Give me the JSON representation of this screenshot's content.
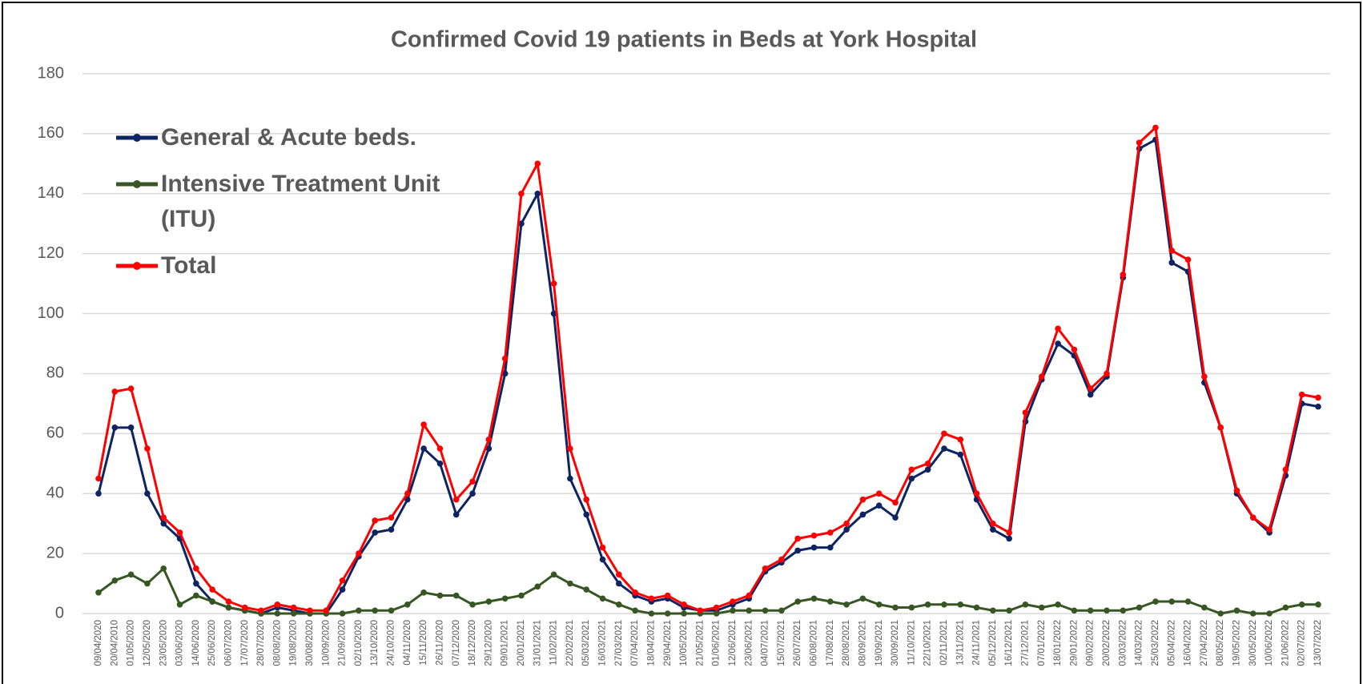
{
  "chart_data": {
    "type": "line",
    "title": "Confirmed Covid 19 patients in Beds at York Hospital",
    "categories": [
      "09/04/2020",
      "20/04/2010",
      "01/05/2020",
      "12/05/2020",
      "23/05/2020",
      "03/06/2020",
      "14/06/2020",
      "25/06/2020",
      "06/07/2020",
      "17/07/2020",
      "28/07/2020",
      "08/08/2020",
      "19/08/2020",
      "30/08/2020",
      "10/09/2020",
      "21/09/2020",
      "02/10/2020",
      "13/10/2020",
      "24/10/2020",
      "04/11/2020",
      "15/11/2020",
      "26/11/2020",
      "07/12/2020",
      "18/12/2020",
      "29/12/2020",
      "09/01/2021",
      "20/01/2021",
      "31/01/2021",
      "11/02/2021",
      "22/02/2021",
      "05/03/2021",
      "16/03/2021",
      "27/03/2021",
      "07/04/2021",
      "18/04/2021",
      "29/04/2021",
      "10/05/2021",
      "21/05/2021",
      "01/06/2021",
      "12/06/2021",
      "23/06/2021",
      "04/07/2021",
      "15/07/2021",
      "26/07/2021",
      "06/08/2021",
      "17/08/2021",
      "28/08/2021",
      "08/09/2021",
      "19/09/2021",
      "30/09/2021",
      "11/10/2021",
      "22/10/2021",
      "02/11/2021",
      "13/11/2021",
      "24/11/2021",
      "05/12/2021",
      "16/12/2021",
      "27/12/2021",
      "07/01/2022",
      "18/01/2022",
      "29/01/2022",
      "09/02/2022",
      "20/02/2022",
      "03/03/2022",
      "14/03/2022",
      "25/03/2022",
      "05/04/2022",
      "16/04/2022",
      "27/04/2022",
      "08/05/2022",
      "19/05/2022",
      "30/05/2022",
      "10/06/2022",
      "21/06/2022",
      "02/07/2022",
      "13/07/2022"
    ],
    "series": [
      {
        "name": "General & Acute beds.",
        "color": "#0d2463",
        "values": [
          40,
          62,
          62,
          40,
          30,
          25,
          10,
          4,
          2,
          1,
          0,
          2,
          1,
          0,
          0,
          8,
          19,
          27,
          28,
          38,
          55,
          50,
          33,
          40,
          55,
          80,
          130,
          140,
          100,
          45,
          33,
          18,
          10,
          6,
          4,
          5,
          2,
          1,
          1,
          3,
          5,
          14,
          17,
          21,
          22,
          22,
          28,
          33,
          36,
          32,
          45,
          48,
          55,
          53,
          38,
          28,
          25,
          64,
          78,
          90,
          86,
          73,
          79,
          112,
          155,
          158,
          117,
          114,
          77,
          62,
          40,
          32,
          27,
          46,
          70,
          69
        ]
      },
      {
        "name": "Intensive Treatment Unit (ITU)",
        "color": "#375623",
        "values": [
          7,
          11,
          13,
          10,
          15,
          3,
          6,
          4,
          2,
          1,
          0,
          0,
          0,
          0,
          0,
          0,
          1,
          1,
          1,
          3,
          7,
          6,
          6,
          3,
          4,
          5,
          6,
          9,
          13,
          10,
          8,
          5,
          3,
          1,
          0,
          0,
          0,
          0,
          0,
          1,
          1,
          1,
          1,
          4,
          5,
          4,
          3,
          5,
          3,
          2,
          2,
          3,
          3,
          3,
          2,
          1,
          1,
          3,
          2,
          3,
          1,
          1,
          1,
          1,
          2,
          4,
          4,
          4,
          2,
          0,
          1,
          0,
          0,
          2,
          3,
          3
        ]
      },
      {
        "name": "Total",
        "color": "#ff0000",
        "values": [
          45,
          74,
          75,
          55,
          32,
          27,
          15,
          8,
          4,
          2,
          1,
          3,
          2,
          1,
          1,
          11,
          20,
          31,
          32,
          40,
          63,
          55,
          38,
          44,
          58,
          85,
          140,
          150,
          110,
          55,
          38,
          22,
          13,
          7,
          5,
          6,
          3,
          1,
          2,
          4,
          6,
          15,
          18,
          25,
          26,
          27,
          30,
          38,
          40,
          37,
          48,
          50,
          60,
          58,
          40,
          30,
          27,
          67,
          79,
          95,
          88,
          75,
          80,
          113,
          157,
          162,
          121,
          118,
          79,
          62,
          41,
          32,
          28,
          48,
          73,
          72
        ]
      }
    ],
    "ylim": [
      0,
      180
    ],
    "yticks": [
      0,
      20,
      40,
      60,
      80,
      100,
      120,
      140,
      160,
      180
    ],
    "grid": true
  }
}
